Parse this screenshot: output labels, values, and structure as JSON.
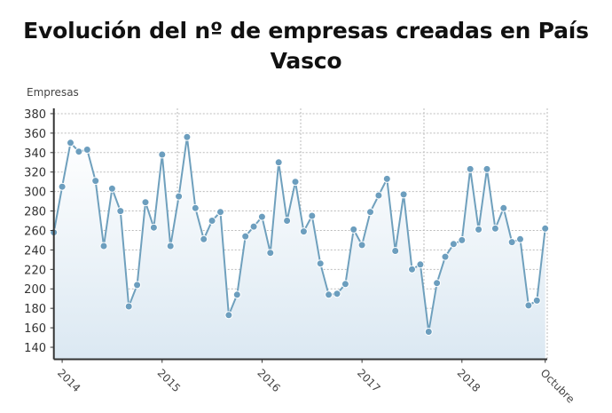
{
  "title": "Evolución del nº de empresas creadas en País Vasco",
  "colors": {
    "line": "#6fa0bd",
    "marker": "#6c9ebe",
    "fill_top": "#ffffff",
    "fill_bottom": "#dbe8f2",
    "grid": "#bbbbbb",
    "axis": "#333333"
  },
  "chart_data": {
    "type": "area",
    "title": "Evolución del nº de empresas creadas en País Vasco",
    "xlabel": "",
    "ylabel": "Empresas",
    "ylim": [
      130,
      380
    ],
    "yticks": [
      140,
      160,
      180,
      200,
      220,
      240,
      260,
      280,
      300,
      320,
      340,
      360,
      380
    ],
    "xtick_labels": [
      {
        "label": "2014",
        "index": 1
      },
      {
        "label": "2015",
        "index": 13
      },
      {
        "label": "2016",
        "index": 25
      },
      {
        "label": "2017",
        "index": 37
      },
      {
        "label": "2018",
        "index": 49
      },
      {
        "label": "Octubre",
        "index": 59
      }
    ],
    "grid": true,
    "legend": "none",
    "series": [
      {
        "name": "Empresas",
        "values": [
          258,
          305,
          350,
          341,
          343,
          311,
          244,
          303,
          280,
          182,
          204,
          289,
          263,
          338,
          244,
          295,
          356,
          283,
          251,
          270,
          279,
          173,
          194,
          254,
          264,
          274,
          237,
          330,
          270,
          310,
          259,
          275,
          226,
          194,
          195,
          205,
          261,
          245,
          279,
          296,
          313,
          239,
          297,
          220,
          225,
          156,
          206,
          233,
          246,
          250,
          323,
          261,
          323,
          262,
          283,
          248,
          251,
          183,
          188,
          262
        ]
      }
    ]
  }
}
